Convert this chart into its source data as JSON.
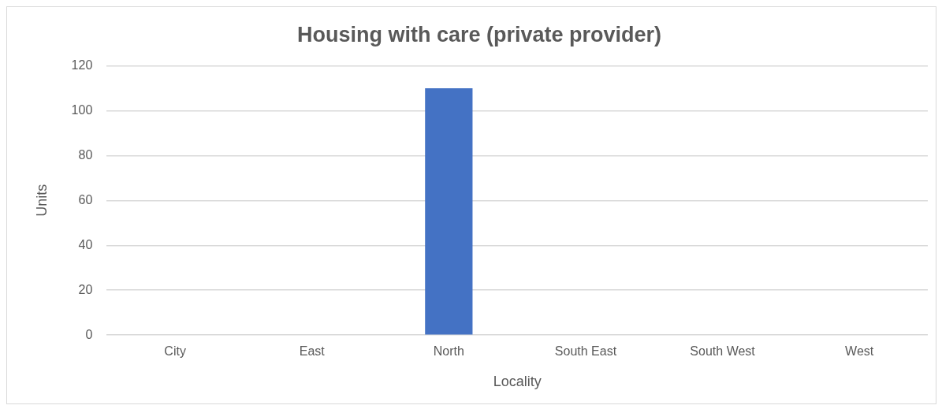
{
  "chart_data": {
    "type": "bar",
    "title": "Housing with care (private provider)",
    "xlabel": "Locality",
    "ylabel": "Units",
    "categories": [
      "City",
      "East",
      "North",
      "South East",
      "South West",
      "West"
    ],
    "values": [
      0,
      0,
      110,
      0,
      0,
      0
    ],
    "color": "#4472c4",
    "ylim": [
      0,
      120
    ],
    "yticks": [
      0,
      20,
      40,
      60,
      80,
      100,
      120
    ],
    "grid": "y",
    "legend": false
  }
}
